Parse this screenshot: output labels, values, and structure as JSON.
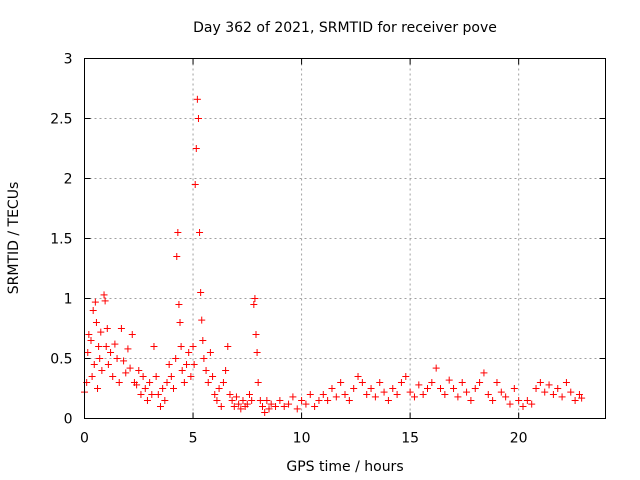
{
  "chart_data": {
    "type": "scatter",
    "title": "Day 362 of 2021, SRMTID for receiver pove",
    "xlabel": "GPS time / hours",
    "ylabel": "SRMTID / TECUs",
    "xlim": [
      0,
      24
    ],
    "ylim": [
      0,
      3
    ],
    "xticks": [
      0,
      5,
      10,
      15,
      20
    ],
    "yticks": [
      0,
      0.5,
      1,
      1.5,
      2,
      2.5,
      3
    ],
    "xtick_labels": [
      "0",
      "5",
      "10",
      "15",
      "20"
    ],
    "ytick_labels": [
      "0",
      "0.5",
      "1",
      "1.5",
      "2",
      "2.5",
      "3"
    ],
    "grid": true,
    "marker": "+",
    "color": "#ff0000",
    "series": [
      {
        "name": "SRMTID",
        "points": [
          [
            0.0,
            0.22
          ],
          [
            0.1,
            0.3
          ],
          [
            0.15,
            0.55
          ],
          [
            0.2,
            0.7
          ],
          [
            0.3,
            0.65
          ],
          [
            0.35,
            0.35
          ],
          [
            0.4,
            0.9
          ],
          [
            0.45,
            0.45
          ],
          [
            0.5,
            0.97
          ],
          [
            0.55,
            0.8
          ],
          [
            0.6,
            0.25
          ],
          [
            0.65,
            0.6
          ],
          [
            0.7,
            0.5
          ],
          [
            0.75,
            0.72
          ],
          [
            0.8,
            0.4
          ],
          [
            0.9,
            1.03
          ],
          [
            0.95,
            0.98
          ],
          [
            1.0,
            0.6
          ],
          [
            1.05,
            0.75
          ],
          [
            1.1,
            0.45
          ],
          [
            1.2,
            0.55
          ],
          [
            1.3,
            0.35
          ],
          [
            1.4,
            0.62
          ],
          [
            1.5,
            0.5
          ],
          [
            1.6,
            0.3
          ],
          [
            1.7,
            0.75
          ],
          [
            1.8,
            0.48
          ],
          [
            1.9,
            0.38
          ],
          [
            2.0,
            0.58
          ],
          [
            2.1,
            0.42
          ],
          [
            2.2,
            0.7
          ],
          [
            2.3,
            0.3
          ],
          [
            2.4,
            0.28
          ],
          [
            2.5,
            0.4
          ],
          [
            2.6,
            0.2
          ],
          [
            2.7,
            0.35
          ],
          [
            2.8,
            0.25
          ],
          [
            2.9,
            0.15
          ],
          [
            3.0,
            0.3
          ],
          [
            3.1,
            0.2
          ],
          [
            3.2,
            0.6
          ],
          [
            3.3,
            0.35
          ],
          [
            3.4,
            0.2
          ],
          [
            3.5,
            0.1
          ],
          [
            3.6,
            0.25
          ],
          [
            3.7,
            0.15
          ],
          [
            3.8,
            0.3
          ],
          [
            3.9,
            0.45
          ],
          [
            4.0,
            0.35
          ],
          [
            4.1,
            0.25
          ],
          [
            4.2,
            0.5
          ],
          [
            4.25,
            1.35
          ],
          [
            4.3,
            1.55
          ],
          [
            4.35,
            0.95
          ],
          [
            4.4,
            0.8
          ],
          [
            4.45,
            0.6
          ],
          [
            4.5,
            0.4
          ],
          [
            4.6,
            0.3
          ],
          [
            4.7,
            0.45
          ],
          [
            4.8,
            0.55
          ],
          [
            4.9,
            0.35
          ],
          [
            5.0,
            0.6
          ],
          [
            5.05,
            0.45
          ],
          [
            5.1,
            1.95
          ],
          [
            5.15,
            2.25
          ],
          [
            5.2,
            2.66
          ],
          [
            5.25,
            2.5
          ],
          [
            5.3,
            1.55
          ],
          [
            5.35,
            1.05
          ],
          [
            5.4,
            0.82
          ],
          [
            5.45,
            0.65
          ],
          [
            5.5,
            0.5
          ],
          [
            5.6,
            0.4
          ],
          [
            5.7,
            0.3
          ],
          [
            5.8,
            0.55
          ],
          [
            5.9,
            0.35
          ],
          [
            6.0,
            0.2
          ],
          [
            6.1,
            0.15
          ],
          [
            6.2,
            0.25
          ],
          [
            6.3,
            0.1
          ],
          [
            6.4,
            0.3
          ],
          [
            6.5,
            0.4
          ],
          [
            6.6,
            0.6
          ],
          [
            6.7,
            0.2
          ],
          [
            6.8,
            0.15
          ],
          [
            6.9,
            0.1
          ],
          [
            7.0,
            0.18
          ],
          [
            7.1,
            0.12
          ],
          [
            7.2,
            0.08
          ],
          [
            7.3,
            0.15
          ],
          [
            7.4,
            0.1
          ],
          [
            7.5,
            0.12
          ],
          [
            7.6,
            0.2
          ],
          [
            7.7,
            0.15
          ],
          [
            7.8,
            0.95
          ],
          [
            7.85,
            1.0
          ],
          [
            7.9,
            0.7
          ],
          [
            7.95,
            0.55
          ],
          [
            8.0,
            0.3
          ],
          [
            8.1,
            0.15
          ],
          [
            8.2,
            0.1
          ],
          [
            8.3,
            0.05
          ],
          [
            8.4,
            0.15
          ],
          [
            8.5,
            0.08
          ],
          [
            8.6,
            0.12
          ],
          [
            8.8,
            0.1
          ],
          [
            9.0,
            0.15
          ],
          [
            9.2,
            0.1
          ],
          [
            9.4,
            0.12
          ],
          [
            9.6,
            0.18
          ],
          [
            9.8,
            0.08
          ],
          [
            10.0,
            0.15
          ],
          [
            10.2,
            0.12
          ],
          [
            10.4,
            0.2
          ],
          [
            10.6,
            0.1
          ],
          [
            10.8,
            0.15
          ],
          [
            11.0,
            0.2
          ],
          [
            11.2,
            0.15
          ],
          [
            11.4,
            0.25
          ],
          [
            11.6,
            0.18
          ],
          [
            11.8,
            0.3
          ],
          [
            12.0,
            0.2
          ],
          [
            12.2,
            0.15
          ],
          [
            12.4,
            0.25
          ],
          [
            12.6,
            0.35
          ],
          [
            12.8,
            0.3
          ],
          [
            13.0,
            0.2
          ],
          [
            13.2,
            0.25
          ],
          [
            13.4,
            0.18
          ],
          [
            13.6,
            0.3
          ],
          [
            13.8,
            0.22
          ],
          [
            14.0,
            0.15
          ],
          [
            14.2,
            0.25
          ],
          [
            14.4,
            0.2
          ],
          [
            14.6,
            0.3
          ],
          [
            14.8,
            0.35
          ],
          [
            15.0,
            0.22
          ],
          [
            15.2,
            0.18
          ],
          [
            15.4,
            0.28
          ],
          [
            15.6,
            0.2
          ],
          [
            15.8,
            0.25
          ],
          [
            16.0,
            0.3
          ],
          [
            16.2,
            0.42
          ],
          [
            16.4,
            0.25
          ],
          [
            16.6,
            0.2
          ],
          [
            16.8,
            0.32
          ],
          [
            17.0,
            0.25
          ],
          [
            17.2,
            0.18
          ],
          [
            17.4,
            0.3
          ],
          [
            17.6,
            0.22
          ],
          [
            17.8,
            0.15
          ],
          [
            18.0,
            0.25
          ],
          [
            18.2,
            0.3
          ],
          [
            18.4,
            0.38
          ],
          [
            18.6,
            0.2
          ],
          [
            18.8,
            0.15
          ],
          [
            19.0,
            0.3
          ],
          [
            19.2,
            0.22
          ],
          [
            19.4,
            0.18
          ],
          [
            19.6,
            0.12
          ],
          [
            19.8,
            0.25
          ],
          [
            20.0,
            0.15
          ],
          [
            20.2,
            0.1
          ],
          [
            20.4,
            0.15
          ],
          [
            20.6,
            0.12
          ],
          [
            20.8,
            0.25
          ],
          [
            21.0,
            0.3
          ],
          [
            21.2,
            0.22
          ],
          [
            21.4,
            0.28
          ],
          [
            21.6,
            0.2
          ],
          [
            21.8,
            0.25
          ],
          [
            22.0,
            0.18
          ],
          [
            22.2,
            0.3
          ],
          [
            22.4,
            0.22
          ],
          [
            22.6,
            0.15
          ],
          [
            22.8,
            0.2
          ],
          [
            22.9,
            0.17
          ]
        ]
      }
    ]
  }
}
